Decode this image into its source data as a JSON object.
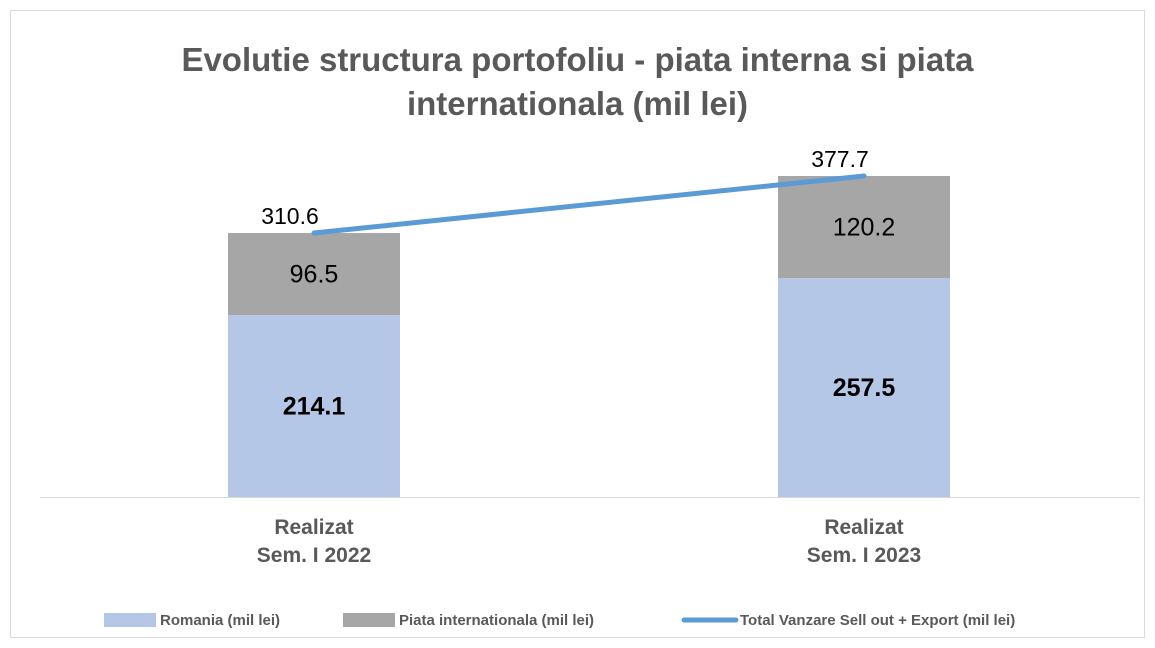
{
  "chart_data": {
    "type": "bar",
    "stacked": true,
    "title": "Evolutie structura portofoliu - piata interna si piata internationala (mil lei)",
    "categories": [
      "Realizat\nSem. I 2022",
      "Realizat\nSem. I 2023"
    ],
    "series": [
      {
        "name": "Romania (mil lei)",
        "type": "bar",
        "color": "#b4c7e7",
        "values": [
          214.1,
          257.5
        ]
      },
      {
        "name": "Piata internationala (mil lei)",
        "type": "bar",
        "color": "#a6a6a6",
        "values": [
          96.5,
          120.2
        ]
      },
      {
        "name": "Total Vanzare Sell out + Export (mil lei)",
        "type": "line",
        "color": "#5b9bd5",
        "values": [
          310.6,
          377.7
        ]
      }
    ],
    "legend": "bottom"
  }
}
